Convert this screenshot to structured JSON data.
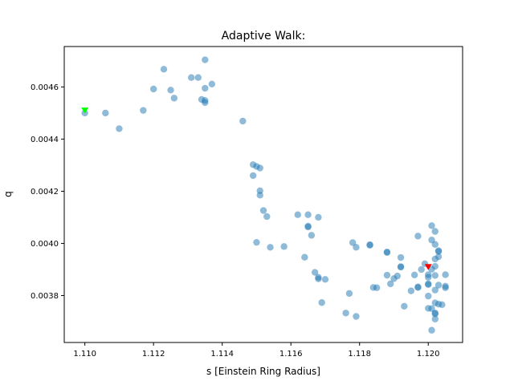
{
  "chart_data": {
    "type": "scatter",
    "title": "Adaptive Walk:",
    "xlabel": "s [Einstein Ring Radius]",
    "ylabel": "q",
    "xlim": [
      1.1094,
      1.121
    ],
    "ylim": [
      0.00362,
      0.004755
    ],
    "xticks": [
      "1.110",
      "1.112",
      "1.114",
      "1.116",
      "1.118",
      "1.120"
    ],
    "xtick_values": [
      1.11,
      1.112,
      1.114,
      1.116,
      1.118,
      1.12
    ],
    "yticks": [
      "0.0038",
      "0.0040",
      "0.0042",
      "0.0044",
      "0.0046"
    ],
    "ytick_values": [
      0.0038,
      0.004,
      0.0042,
      0.0044,
      0.0046
    ],
    "grid": false,
    "colors": {
      "points": "#1f77b4",
      "start_marker": "#00ff00",
      "end_marker": "#ff0000"
    },
    "series": [
      {
        "marker": "circle",
        "opacity": 0.5,
        "points": [
          [
            1.11,
            0.0045
          ],
          [
            1.1106,
            0.0045
          ],
          [
            1.111,
            0.00444
          ],
          [
            1.1117,
            0.00451
          ],
          [
            1.112,
            0.004592
          ],
          [
            1.1123,
            0.004668
          ],
          [
            1.1125,
            0.004588
          ],
          [
            1.1126,
            0.004557
          ],
          [
            1.1131,
            0.004636
          ],
          [
            1.1133,
            0.004636
          ],
          [
            1.1134,
            0.004552
          ],
          [
            1.1135,
            0.004704
          ],
          [
            1.1135,
            0.004595
          ],
          [
            1.1135,
            0.00454
          ],
          [
            1.1135,
            0.004548
          ],
          [
            1.1137,
            0.004611
          ],
          [
            1.1146,
            0.004469
          ],
          [
            1.1149,
            0.004302
          ],
          [
            1.1149,
            0.00426
          ],
          [
            1.115,
            0.004295
          ],
          [
            1.1151,
            0.004289
          ],
          [
            1.1151,
            0.004202
          ],
          [
            1.1151,
            0.004185
          ],
          [
            1.1152,
            0.004126
          ],
          [
            1.1153,
            0.004103
          ],
          [
            1.115,
            0.004004
          ],
          [
            1.1154,
            0.003985
          ],
          [
            1.1158,
            0.003988
          ],
          [
            1.1162,
            0.00411
          ],
          [
            1.1164,
            0.003947
          ],
          [
            1.1165,
            0.00411
          ],
          [
            1.1165,
            0.004066
          ],
          [
            1.1165,
            0.004063
          ],
          [
            1.1166,
            0.004031
          ],
          [
            1.1167,
            0.003889
          ],
          [
            1.1168,
            0.0041
          ],
          [
            1.1168,
            0.00387
          ],
          [
            1.1168,
            0.003864
          ],
          [
            1.1169,
            0.003773
          ],
          [
            1.117,
            0.003862
          ],
          [
            1.1176,
            0.003733
          ],
          [
            1.1177,
            0.003808
          ],
          [
            1.1178,
            0.004003
          ],
          [
            1.1179,
            0.003985
          ],
          [
            1.1179,
            0.00372
          ],
          [
            1.1183,
            0.003993
          ],
          [
            1.1183,
            0.003995
          ],
          [
            1.1184,
            0.003831
          ],
          [
            1.1185,
            0.00383
          ],
          [
            1.1188,
            0.003967
          ],
          [
            1.1188,
            0.003965
          ],
          [
            1.1188,
            0.003878
          ],
          [
            1.1189,
            0.003845
          ],
          [
            1.119,
            0.003865
          ],
          [
            1.1191,
            0.003875
          ],
          [
            1.1192,
            0.003946
          ],
          [
            1.1192,
            0.003909
          ],
          [
            1.1192,
            0.003911
          ],
          [
            1.1193,
            0.003759
          ],
          [
            1.1195,
            0.003818
          ],
          [
            1.1196,
            0.003879
          ],
          [
            1.1197,
            0.004028
          ],
          [
            1.1197,
            0.003833
          ],
          [
            1.1197,
            0.003831
          ],
          [
            1.1198,
            0.0039
          ],
          [
            1.1199,
            0.003922
          ],
          [
            1.12,
            0.00388
          ],
          [
            1.12,
            0.00387
          ],
          [
            1.12,
            0.003845
          ],
          [
            1.12,
            0.003842
          ],
          [
            1.12,
            0.003798
          ],
          [
            1.12,
            0.003751
          ],
          [
            1.1201,
            0.003901
          ],
          [
            1.1201,
            0.00375
          ],
          [
            1.1201,
            0.003667
          ],
          [
            1.1201,
            0.004068
          ],
          [
            1.1201,
            0.004013
          ],
          [
            1.1202,
            0.003996
          ],
          [
            1.1202,
            0.004046
          ],
          [
            1.1202,
            0.003912
          ],
          [
            1.1202,
            0.00394
          ],
          [
            1.1202,
            0.003877
          ],
          [
            1.1202,
            0.003821
          ],
          [
            1.1202,
            0.003772
          ],
          [
            1.1202,
            0.003733
          ],
          [
            1.1202,
            0.00373
          ],
          [
            1.1202,
            0.00371
          ],
          [
            1.1203,
            0.003972
          ],
          [
            1.1203,
            0.003969
          ],
          [
            1.1203,
            0.003949
          ],
          [
            1.1203,
            0.00384
          ],
          [
            1.1203,
            0.003767
          ],
          [
            1.1204,
            0.003765
          ],
          [
            1.1205,
            0.00388
          ],
          [
            1.1205,
            0.00383
          ],
          [
            1.1205,
            0.003836
          ]
        ]
      },
      {
        "name": "start",
        "marker": "triangle-down",
        "points": [
          [
            1.11,
            0.00451
          ]
        ]
      },
      {
        "name": "end",
        "marker": "triangle-down",
        "points": [
          [
            1.12,
            0.00391
          ]
        ]
      }
    ]
  }
}
